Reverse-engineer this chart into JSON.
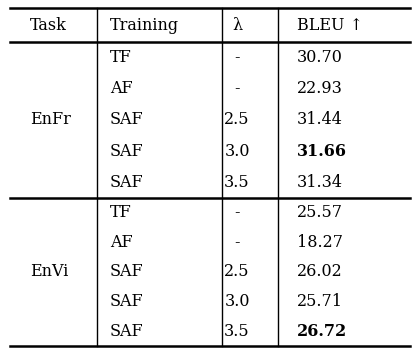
{
  "headers": [
    "Task",
    "Training",
    "λ",
    "BLEU ↑"
  ],
  "enfr_rows": [
    [
      "EnFr",
      "TF",
      "-",
      "30.70",
      false
    ],
    [
      "",
      "AF",
      "-",
      "22.93",
      false
    ],
    [
      "",
      "SAF",
      "2.5",
      "31.44",
      false
    ],
    [
      "",
      "SAF",
      "3.0",
      "31.66",
      true
    ],
    [
      "",
      "SAF",
      "3.5",
      "31.34",
      false
    ]
  ],
  "envi_rows": [
    [
      "EnVi",
      "TF",
      "-",
      "25.57",
      false
    ],
    [
      "",
      "AF",
      "-",
      "18.27",
      false
    ],
    [
      "",
      "SAF",
      "2.5",
      "26.02",
      false
    ],
    [
      "",
      "SAF",
      "3.0",
      "25.71",
      false
    ],
    [
      "",
      "SAF",
      "3.5",
      "26.72",
      true
    ]
  ],
  "background_color": "#ffffff",
  "text_color": "#000000",
  "font_size": 11.5
}
